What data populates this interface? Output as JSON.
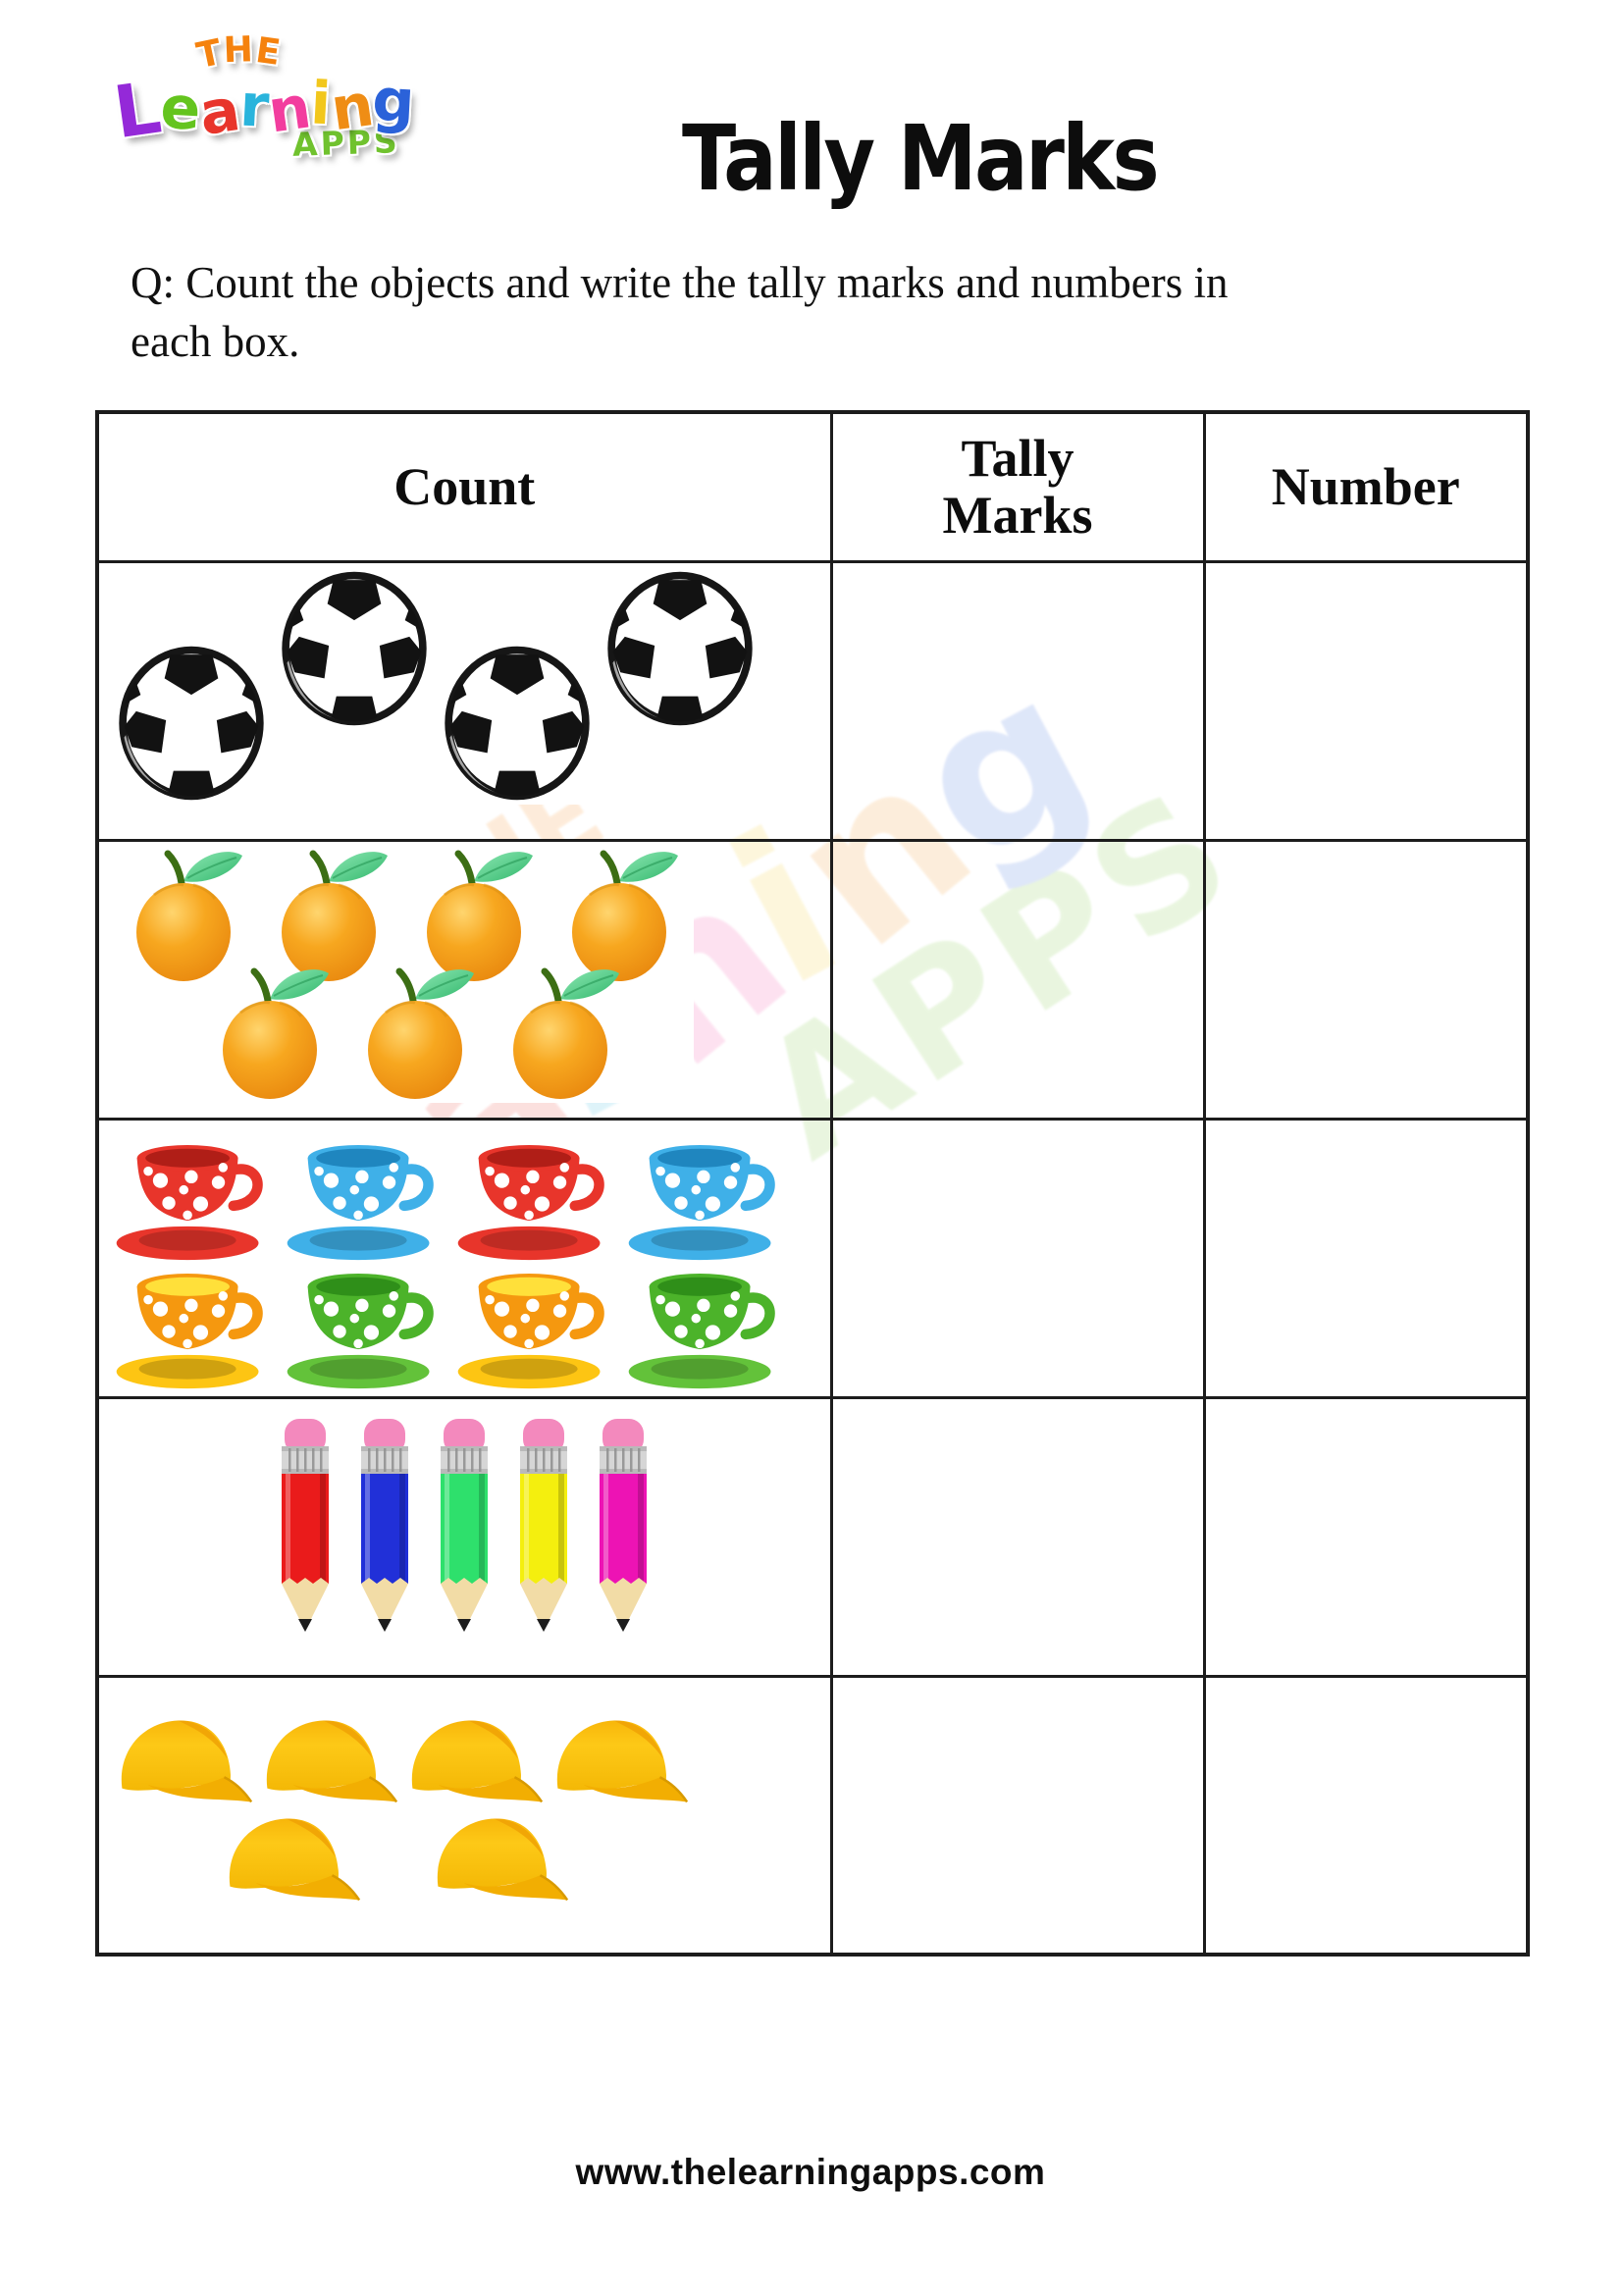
{
  "logo": {
    "the": {
      "text": "THE",
      "color": "#f5820e"
    },
    "learning": {
      "letters": [
        {
          "ch": "L",
          "color": "#9429d8"
        },
        {
          "ch": "e",
          "color": "#64c41e"
        },
        {
          "ch": "a",
          "color": "#e8352b"
        },
        {
          "ch": "r",
          "color": "#2ab4dc"
        },
        {
          "ch": "n",
          "color": "#f23d9e"
        },
        {
          "ch": "i",
          "color": "#f2c71c"
        },
        {
          "ch": "n",
          "color": "#ef8d15"
        },
        {
          "ch": "g",
          "color": "#2b62d9"
        }
      ]
    },
    "apps": {
      "text": "APPS",
      "color": "#70c22e"
    }
  },
  "title": "Tally Marks",
  "question": {
    "line1": "Q: Count the objects and write the tally marks and numbers in",
    "line2": "each box."
  },
  "table": {
    "headers": [
      "Count",
      "Tally Marks",
      "Number"
    ],
    "rows": [
      {
        "object": "soccer balls",
        "icon": "soccer-ball",
        "count": 4,
        "layout": "zigzag",
        "lines": [
          4
        ],
        "tally": "",
        "number": ""
      },
      {
        "object": "oranges",
        "icon": "orange",
        "count": 7,
        "layout": "stagger",
        "lines": [
          4,
          3
        ],
        "tally": "",
        "number": ""
      },
      {
        "object": "teacups",
        "icon": "cup",
        "count": 8,
        "layout": "grid",
        "lines": [
          4,
          4
        ],
        "colors": [
          {
            "body": "#e8352b",
            "saucer": "#e8352b",
            "inner": "#b01e17"
          },
          {
            "body": "#3fb0e8",
            "saucer": "#3fb0e8",
            "inner": "#1f86bf"
          },
          {
            "body": "#e8352b",
            "saucer": "#e8352b",
            "inner": "#b01e17"
          },
          {
            "body": "#3fb0e8",
            "saucer": "#3fb0e8",
            "inner": "#1f86bf"
          },
          {
            "body": "#f5980f",
            "saucer": "#fdc513",
            "inner": "#ffe03a"
          },
          {
            "body": "#4cb32a",
            "saucer": "#63c23a",
            "inner": "#2f8f19"
          },
          {
            "body": "#f5980f",
            "saucer": "#fdc513",
            "inner": "#ffe03a"
          },
          {
            "body": "#4cb32a",
            "saucer": "#63c23a",
            "inner": "#2f8f19"
          }
        ],
        "tally": "",
        "number": ""
      },
      {
        "object": "pencils",
        "icon": "pencil",
        "count": 5,
        "layout": "center-row",
        "lines": [
          5
        ],
        "colors": [
          "#ea1b1b",
          "#2130d8",
          "#2ee06c",
          "#f4ef0e",
          "#ed13b4"
        ],
        "tally": "",
        "number": ""
      },
      {
        "object": "caps",
        "icon": "cap",
        "count": 6,
        "layout": "stagger-caps",
        "lines": [
          4,
          2
        ],
        "color": "#fdc40e",
        "tally": "",
        "number": ""
      }
    ]
  },
  "footer": {
    "url": "www.thelearningapps.com"
  },
  "colors": {
    "table_border": "#1c1c1c",
    "title_text": "#0d0d0d",
    "body_text": "#111111"
  }
}
